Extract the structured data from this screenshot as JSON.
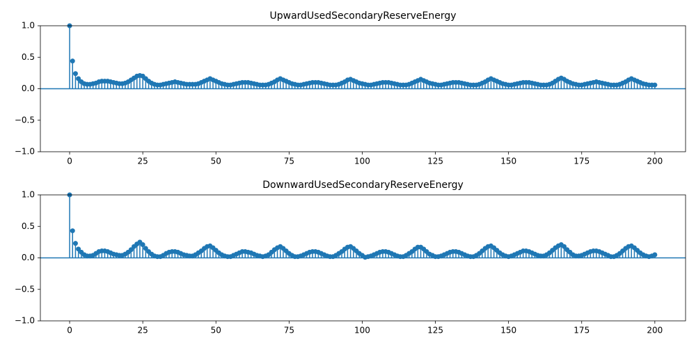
{
  "chart_data": [
    {
      "type": "stem",
      "title": "UpwardUsedSecondaryReserveEnergy",
      "color": "#1f77b4",
      "xlim": [
        -10,
        210.5
      ],
      "xticks": [
        0,
        25,
        50,
        75,
        100,
        125,
        150,
        175,
        200
      ],
      "ylim": [
        -1,
        1
      ],
      "yticks": [
        {
          "value": -1,
          "label": "−1.0"
        },
        {
          "value": -0.5,
          "label": "−0.5"
        },
        {
          "value": 0,
          "label": "0.0"
        },
        {
          "value": 0.5,
          "label": "0.5"
        },
        {
          "value": 1,
          "label": "1.0"
        }
      ],
      "values": [
        1.0,
        0.44,
        0.24,
        0.16,
        0.11,
        0.08,
        0.07,
        0.07,
        0.08,
        0.09,
        0.11,
        0.12,
        0.12,
        0.12,
        0.11,
        0.1,
        0.09,
        0.08,
        0.08,
        0.09,
        0.11,
        0.14,
        0.17,
        0.2,
        0.21,
        0.2,
        0.16,
        0.12,
        0.09,
        0.07,
        0.06,
        0.06,
        0.07,
        0.08,
        0.09,
        0.1,
        0.11,
        0.1,
        0.09,
        0.08,
        0.07,
        0.07,
        0.07,
        0.07,
        0.08,
        0.1,
        0.12,
        0.14,
        0.16,
        0.14,
        0.12,
        0.1,
        0.08,
        0.07,
        0.06,
        0.06,
        0.07,
        0.08,
        0.09,
        0.1,
        0.1,
        0.1,
        0.09,
        0.08,
        0.07,
        0.06,
        0.06,
        0.06,
        0.07,
        0.09,
        0.11,
        0.14,
        0.16,
        0.14,
        0.12,
        0.1,
        0.08,
        0.07,
        0.06,
        0.06,
        0.07,
        0.08,
        0.09,
        0.1,
        0.1,
        0.1,
        0.09,
        0.08,
        0.07,
        0.06,
        0.06,
        0.06,
        0.07,
        0.09,
        0.11,
        0.14,
        0.15,
        0.13,
        0.11,
        0.09,
        0.08,
        0.07,
        0.06,
        0.06,
        0.07,
        0.08,
        0.09,
        0.1,
        0.1,
        0.1,
        0.09,
        0.08,
        0.07,
        0.06,
        0.06,
        0.06,
        0.07,
        0.09,
        0.11,
        0.13,
        0.15,
        0.13,
        0.11,
        0.09,
        0.08,
        0.07,
        0.06,
        0.06,
        0.07,
        0.08,
        0.09,
        0.1,
        0.1,
        0.1,
        0.09,
        0.08,
        0.07,
        0.06,
        0.06,
        0.06,
        0.07,
        0.09,
        0.11,
        0.14,
        0.16,
        0.14,
        0.12,
        0.1,
        0.08,
        0.07,
        0.06,
        0.06,
        0.07,
        0.08,
        0.09,
        0.1,
        0.1,
        0.1,
        0.09,
        0.08,
        0.07,
        0.06,
        0.06,
        0.06,
        0.07,
        0.09,
        0.12,
        0.15,
        0.17,
        0.15,
        0.12,
        0.1,
        0.08,
        0.07,
        0.06,
        0.06,
        0.07,
        0.08,
        0.09,
        0.1,
        0.11,
        0.1,
        0.09,
        0.08,
        0.07,
        0.06,
        0.06,
        0.06,
        0.07,
        0.09,
        0.11,
        0.14,
        0.16,
        0.14,
        0.12,
        0.1,
        0.08,
        0.07,
        0.06,
        0.06,
        0.06
      ]
    },
    {
      "type": "stem",
      "title": "DownwardUsedSecondaryReserveEnergy",
      "color": "#1f77b4",
      "xlim": [
        -10,
        210.5
      ],
      "xticks": [
        0,
        25,
        50,
        75,
        100,
        125,
        150,
        175,
        200
      ],
      "ylim": [
        -1,
        1
      ],
      "yticks": [
        {
          "value": -1,
          "label": "−1.0"
        },
        {
          "value": -0.5,
          "label": "−0.5"
        },
        {
          "value": 0,
          "label": "0.0"
        },
        {
          "value": 0.5,
          "label": "0.5"
        },
        {
          "value": 1,
          "label": "1.0"
        }
      ],
      "values": [
        1.0,
        0.43,
        0.23,
        0.14,
        0.09,
        0.05,
        0.03,
        0.03,
        0.04,
        0.07,
        0.1,
        0.11,
        0.11,
        0.1,
        0.08,
        0.06,
        0.05,
        0.04,
        0.04,
        0.06,
        0.09,
        0.13,
        0.18,
        0.22,
        0.25,
        0.21,
        0.15,
        0.1,
        0.06,
        0.03,
        0.02,
        0.02,
        0.04,
        0.07,
        0.09,
        0.1,
        0.1,
        0.09,
        0.07,
        0.05,
        0.04,
        0.03,
        0.03,
        0.05,
        0.08,
        0.11,
        0.15,
        0.18,
        0.19,
        0.16,
        0.12,
        0.08,
        0.05,
        0.03,
        0.02,
        0.02,
        0.04,
        0.06,
        0.08,
        0.1,
        0.1,
        0.09,
        0.08,
        0.06,
        0.04,
        0.03,
        0.02,
        0.03,
        0.05,
        0.09,
        0.13,
        0.16,
        0.18,
        0.15,
        0.11,
        0.07,
        0.04,
        0.02,
        0.02,
        0.03,
        0.05,
        0.07,
        0.09,
        0.1,
        0.1,
        0.09,
        0.07,
        0.05,
        0.03,
        0.02,
        0.02,
        0.04,
        0.07,
        0.1,
        0.14,
        0.17,
        0.18,
        0.15,
        0.11,
        0.07,
        0.04,
        0.01,
        0.02,
        0.03,
        0.05,
        0.07,
        0.09,
        0.1,
        0.1,
        0.09,
        0.07,
        0.05,
        0.03,
        0.02,
        0.02,
        0.04,
        0.07,
        0.1,
        0.14,
        0.17,
        0.17,
        0.14,
        0.1,
        0.06,
        0.04,
        0.02,
        0.02,
        0.03,
        0.05,
        0.07,
        0.09,
        0.1,
        0.1,
        0.09,
        0.07,
        0.05,
        0.03,
        0.02,
        0.02,
        0.04,
        0.07,
        0.11,
        0.15,
        0.18,
        0.19,
        0.16,
        0.12,
        0.08,
        0.05,
        0.03,
        0.02,
        0.03,
        0.05,
        0.07,
        0.09,
        0.11,
        0.11,
        0.1,
        0.08,
        0.06,
        0.04,
        0.03,
        0.03,
        0.05,
        0.08,
        0.12,
        0.16,
        0.19,
        0.21,
        0.18,
        0.13,
        0.09,
        0.05,
        0.03,
        0.03,
        0.04,
        0.06,
        0.08,
        0.1,
        0.11,
        0.11,
        0.1,
        0.08,
        0.06,
        0.04,
        0.02,
        0.02,
        0.04,
        0.07,
        0.11,
        0.15,
        0.18,
        0.19,
        0.16,
        0.12,
        0.08,
        0.05,
        0.03,
        0.02,
        0.03,
        0.05
      ]
    }
  ]
}
